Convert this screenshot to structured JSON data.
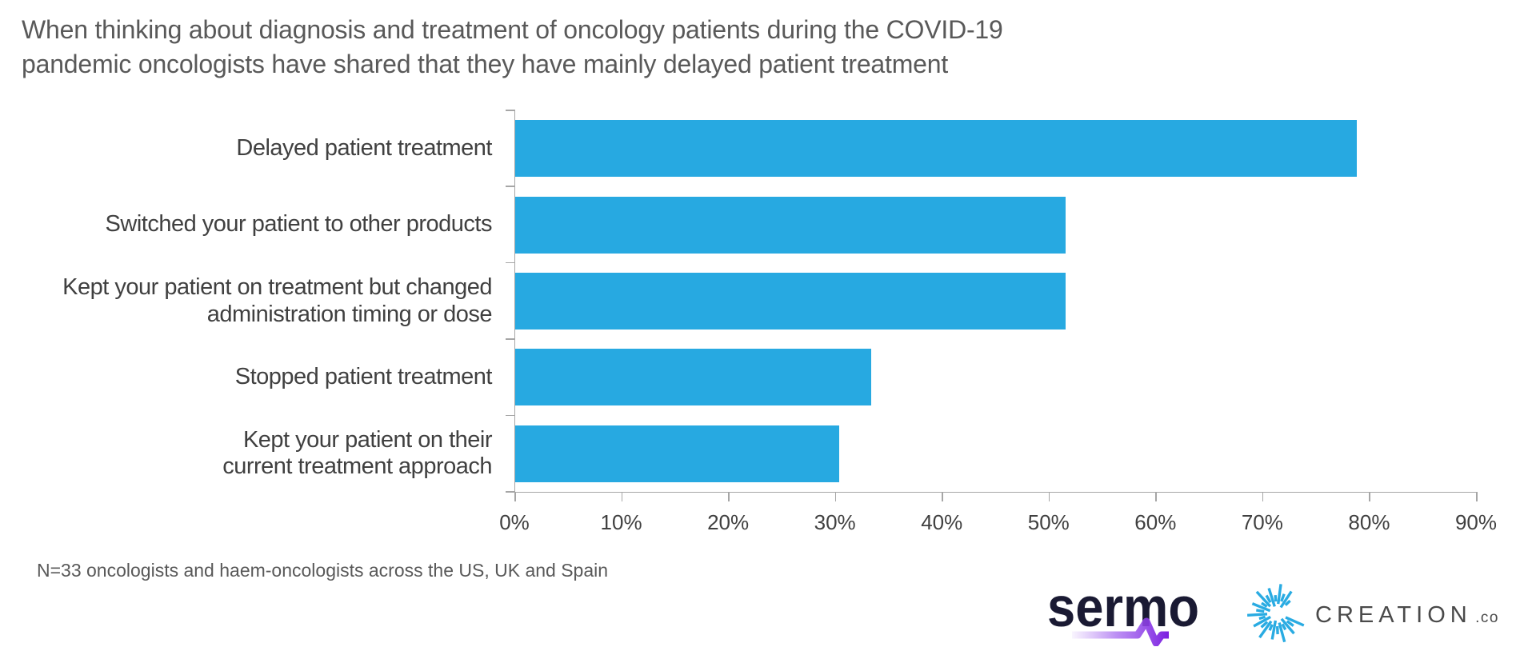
{
  "chart_data": {
    "type": "bar",
    "orientation": "horizontal",
    "title": "When thinking about diagnosis and treatment of oncology patients during the COVID-19\npandemic oncologists have shared that they have mainly delayed patient treatment",
    "categories": [
      "Delayed patient treatment",
      "Switched your patient to other products",
      "Kept your patient on treatment but changed\nadministration timing or dose",
      "Stopped patient treatment",
      "Kept your patient on their\ncurrent treatment approach"
    ],
    "values": [
      78.8,
      51.5,
      51.5,
      33.3,
      30.3
    ],
    "xlabel": "",
    "ylabel": "",
    "xlim": [
      0,
      90
    ],
    "x_ticks": [
      "0%",
      "10%",
      "20%",
      "30%",
      "40%",
      "50%",
      "60%",
      "70%",
      "80%",
      "90%"
    ],
    "bar_color": "#27A9E1",
    "grid": false,
    "legend": "none"
  },
  "footnote": "N=33 oncologists and haem-oncologists across the US, UK and Spain",
  "branding": {
    "sermo_logo_text": "sermo",
    "creation_logo_text": "CREATION",
    "creation_logo_suffix": ".co",
    "colors": {
      "bar_blue": "#27A9E1",
      "sermo_navy": "#1A1A33",
      "sermo_purple": "#7B1FE0",
      "creation_blue": "#29ABE2",
      "creation_gray": "#4A4A4A",
      "axis_gray": "#A6A6A6",
      "title_gray": "#595959",
      "label_gray": "#404040"
    }
  }
}
